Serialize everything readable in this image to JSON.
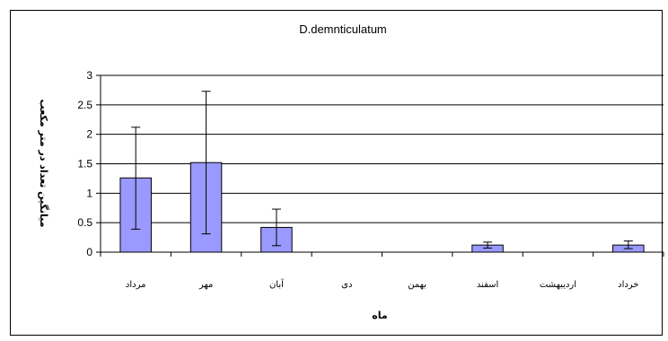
{
  "chart_data": {
    "type": "bar",
    "title": "D.demnticulatum",
    "xlabel": "ماه",
    "ylabel": "میانگین تعداد در متر مکعب",
    "categories": [
      "مرداد",
      "مهر",
      "آبان",
      "دی",
      "بهمن",
      "اسفند",
      "اردیبهشت",
      "خرداد"
    ],
    "values": [
      1.26,
      1.52,
      0.42,
      0,
      0,
      0.12,
      0,
      0.12
    ],
    "error_low": [
      0.39,
      0.31,
      0.11,
      0,
      0,
      0.07,
      0,
      0.06
    ],
    "error_high": [
      2.12,
      2.73,
      0.73,
      0,
      0,
      0.17,
      0,
      0.19
    ],
    "ylim": [
      0,
      3
    ],
    "yticks": [
      "0",
      "0.5",
      "1",
      "1.5",
      "2",
      "2.5",
      "3"
    ],
    "grid": true,
    "colors": {
      "bar_fill": "#9999ff",
      "bar_stroke": "#000000",
      "grid": "#000000"
    }
  }
}
